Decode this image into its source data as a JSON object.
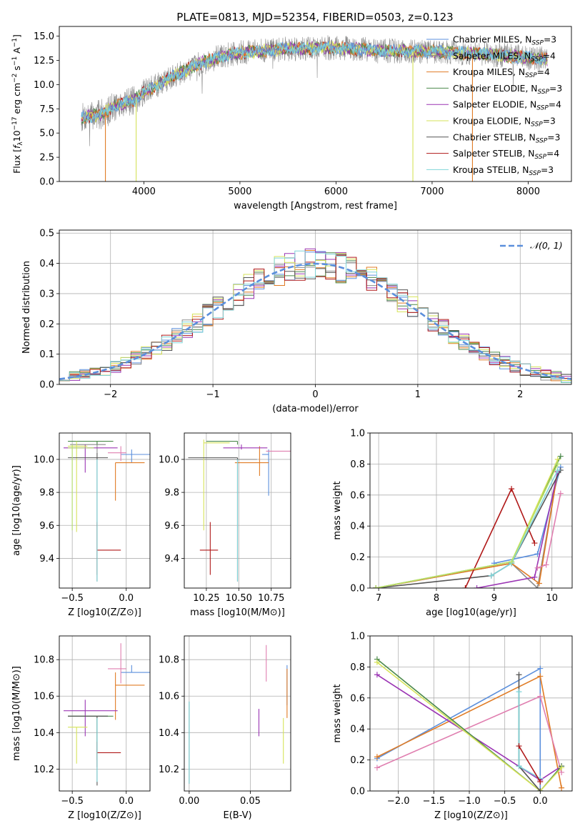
{
  "figure_title": "PLATE=0813, MJD=52354, FIBERID=0503, z=0.123",
  "colors": {
    "chabrier_miles": "#5b8fdc",
    "salpeter_miles": "#8c8c8c",
    "kroupa_miles": "#e07b24",
    "chabrier_elodie": "#4c8a4c",
    "salpeter_elodie": "#9b35b4",
    "kroupa_elodie": "#d6e35a",
    "chabrier_stelib": "#555555",
    "salpeter_stelib": "#b01818",
    "kroupa_stelib": "#7fd4d8",
    "extra_pink": "#e07fb0",
    "extra_lime": "#b6e06a",
    "gaussian": "#5b8fdc"
  },
  "chart_data": [
    {
      "id": "spectrum",
      "type": "line",
      "title": "PLATE=0813, MJD=52354, FIBERID=0503, z=0.123",
      "xlabel": "wavelength [Angstrom, rest frame]",
      "ylabel": "Flux [f_λ 10^-17 erg cm^-2 s^-1 A^-1]",
      "xlim": [
        3120,
        8450
      ],
      "ylim": [
        0,
        16
      ],
      "xticks": [
        "4000",
        "5000",
        "6000",
        "7000",
        "8000"
      ],
      "yticks": [
        "0.0",
        "2.5",
        "5.0",
        "7.5",
        "10.0",
        "12.5",
        "15.0"
      ],
      "grid": false,
      "legend_position": "upper right",
      "series": [
        {
          "name": "Chabrier MILES, N_SSP=3",
          "legend": "Chabrier MILES, NSSP=3"
        },
        {
          "name": "Salpeter MILES, N_SSP=4",
          "legend": "Salpeter MILES, NSSP=4"
        },
        {
          "name": "Kroupa MILES, N_SSP=4",
          "legend": "Kroupa MILES, NSSP=4"
        },
        {
          "name": "Chabrier ELODIE, N_SSP=3",
          "legend": "Chabrier ELODIE, NSSP=3"
        },
        {
          "name": "Salpeter ELODIE, N_SSP=4",
          "legend": "Salpeter ELODIE, NSSP=4"
        },
        {
          "name": "Kroupa ELODIE, N_SSP=3",
          "legend": "Kroupa ELODIE, NSSP=3"
        },
        {
          "name": "Chabrier STELIB, N_SSP=3",
          "legend": "Chabrier STELIB, NSSP=3"
        },
        {
          "name": "Salpeter STELIB, N_SSP=4",
          "legend": "Salpeter STELIB, NSSP=4"
        },
        {
          "name": "Kroupa STELIB, N_SSP=3",
          "legend": "Kroupa STELIB, NSSP=3"
        }
      ],
      "continuum_points": [
        [
          3350,
          6.6
        ],
        [
          3550,
          6.9
        ],
        [
          3700,
          7.8
        ],
        [
          3900,
          8.4
        ],
        [
          4000,
          9.2
        ],
        [
          4200,
          10.3
        ],
        [
          4400,
          11.3
        ],
        [
          4600,
          12.2
        ],
        [
          4800,
          12.9
        ],
        [
          5000,
          13.3
        ],
        [
          5500,
          13.7
        ],
        [
          6000,
          13.8
        ],
        [
          6500,
          13.5
        ],
        [
          7000,
          13.4
        ],
        [
          7500,
          13.2
        ],
        [
          8000,
          12.8
        ],
        [
          8200,
          12.6
        ]
      ],
      "noise_wavelength_range": [
        3350,
        8200
      ],
      "dropouts": [
        {
          "x": 3600,
          "series": "Kroupa MILES"
        },
        {
          "x": 3920,
          "series": "Kroupa ELODIE"
        },
        {
          "x": 6800,
          "series": "Kroupa ELODIE"
        },
        {
          "x": 7420,
          "series": "Kroupa MILES"
        }
      ]
    },
    {
      "id": "residuals",
      "type": "histogram",
      "xlabel": "(data-model)/error",
      "ylabel": "Normed distribution",
      "xlim": [
        -2.5,
        2.5
      ],
      "ylim": [
        0,
        0.51
      ],
      "xticks": [
        "−2",
        "−1",
        "0",
        "1",
        "2"
      ],
      "yticks": [
        "0.0",
        "0.1",
        "0.2",
        "0.3",
        "0.4",
        "0.5"
      ],
      "grid": true,
      "legend_position": "upper right",
      "gaussian_label": "𝒩(0, 1)",
      "bin_width": 0.1,
      "bin_range": [
        -2.5,
        2.5
      ]
    },
    {
      "id": "age_vs_Z",
      "type": "errorbar",
      "xlabel": "Z [log10(Z/Z⊙)]",
      "ylabel": "age  [log10(age/yr)]",
      "xlim": [
        -0.62,
        0.22
      ],
      "ylim": [
        9.22,
        10.16
      ],
      "xticks": [
        "−0.5",
        "0.0"
      ],
      "yticks": [
        "9.4",
        "9.6",
        "9.8",
        "10.0"
      ],
      "grid": true,
      "points": [
        {
          "c": "chabrier_miles",
          "x": 0.05,
          "xe": [
            0.1,
            0.17
          ],
          "y": 10.03,
          "ye": [
            0.05,
            0.03
          ]
        },
        {
          "c": "salpeter_miles",
          "x": -0.27,
          "xe": [
            0.25,
            0.08
          ],
          "y": 10.09,
          "ye": [
            0.05,
            0.02
          ]
        },
        {
          "c": "kroupa_miles",
          "x": -0.1,
          "xe": [
            0.0,
            0.27
          ],
          "y": 9.98,
          "ye": [
            0.23,
            0.0
          ]
        },
        {
          "c": "chabrier_elodie",
          "x": -0.27,
          "xe": [
            0.27,
            0.15
          ],
          "y": 10.11,
          "ye": [
            0.02,
            0.0
          ]
        },
        {
          "c": "salpeter_elodie",
          "x": -0.38,
          "xe": [
            0.2,
            0.3
          ],
          "y": 10.07,
          "ye": [
            0.15,
            0.02
          ]
        },
        {
          "c": "kroupa_elodie",
          "x": -0.46,
          "xe": [
            0.08,
            0.1
          ],
          "y": 10.08,
          "ye": [
            0.52,
            0.03
          ]
        },
        {
          "c": "chabrier_stelib",
          "x": -0.27,
          "xe": [
            0.27,
            0.1
          ],
          "y": 10.01,
          "ye": [
            0.75,
            0.03
          ]
        },
        {
          "c": "salpeter_stelib",
          "x": -0.27,
          "xe": [
            0.0,
            0.22
          ],
          "y": 9.45,
          "ye": [
            0.15,
            0.17
          ]
        },
        {
          "c": "kroupa_stelib",
          "x": -0.27,
          "xe": [
            0.0,
            0.0
          ],
          "y": 10.0,
          "ye": [
            0.74,
            0.0
          ]
        },
        {
          "c": "extra_pink",
          "x": -0.05,
          "xe": [
            0.12,
            0.05
          ],
          "y": 10.04,
          "ye": [
            0.05,
            0.04
          ]
        },
        {
          "c": "extra_lime",
          "x": -0.5,
          "xe": [
            0.04,
            0.2
          ],
          "y": 10.07,
          "ye": [
            0.5,
            0.02
          ]
        }
      ]
    },
    {
      "id": "age_vs_mass",
      "type": "errorbar",
      "xlabel": "mass [log10(M/M⊙)]",
      "ylabel": "",
      "xlim": [
        10.08,
        10.9
      ],
      "ylim": [
        9.22,
        10.16
      ],
      "xticks": [
        "10.25",
        "10.50",
        "10.75"
      ],
      "yticks": [
        "9.4",
        "9.6",
        "9.8",
        "10.0"
      ],
      "grid": true,
      "points": [
        {
          "c": "chabrier_miles",
          "x": 10.73,
          "xe": [
            0.05,
            0.0
          ],
          "y": 10.03,
          "ye": [
            0.25,
            0.03
          ]
        },
        {
          "c": "salpeter_miles",
          "x": 10.49,
          "xe": [
            0.4,
            0.15
          ],
          "y": 10.0,
          "ye": [
            0.0,
            0.0
          ]
        },
        {
          "c": "kroupa_miles",
          "x": 10.66,
          "xe": [
            0.19,
            0.07
          ],
          "y": 9.98,
          "ye": [
            0.08,
            0.1
          ]
        },
        {
          "c": "chabrier_elodie",
          "x": 10.49,
          "xe": [
            0.24,
            0.0
          ],
          "y": 10.11,
          "ye": [
            0.02,
            0.0
          ]
        },
        {
          "c": "salpeter_elodie",
          "x": 10.52,
          "xe": [
            0.14,
            0.2
          ],
          "y": 10.07,
          "ye": [
            0.01,
            0.02
          ]
        },
        {
          "c": "kroupa_elodie",
          "x": 10.23,
          "xe": [
            0.0,
            0.2
          ],
          "y": 10.1,
          "ye": [
            0.53,
            0.02
          ]
        },
        {
          "c": "chabrier_stelib",
          "x": 10.49,
          "xe": [
            0.38,
            0.0
          ],
          "y": 10.01,
          "ye": [
            0.75,
            0.0
          ]
        },
        {
          "c": "salpeter_stelib",
          "x": 10.28,
          "xe": [
            0.08,
            0.06
          ],
          "y": 9.45,
          "ye": [
            0.15,
            0.17
          ]
        },
        {
          "c": "kroupa_stelib",
          "x": 10.49,
          "xe": [
            0.0,
            0.0
          ],
          "y": 10.0,
          "ye": [
            0.74,
            0.0
          ]
        },
        {
          "c": "extra_pink",
          "x": 10.76,
          "xe": [
            0.05,
            0.14
          ],
          "y": 10.05,
          "ye": [
            0.0,
            0.0
          ]
        }
      ]
    },
    {
      "id": "weight_vs_age",
      "type": "line",
      "xlabel": "age  [log10(age/yr)]",
      "ylabel": "mass weight",
      "xlim": [
        6.85,
        10.35
      ],
      "ylim": [
        0,
        1
      ],
      "xticks": [
        "7",
        "8",
        "9",
        "10"
      ],
      "yticks": [
        "0.0",
        "0.2",
        "0.4",
        "0.6",
        "0.8",
        "1.0"
      ],
      "grid": true,
      "series": [
        {
          "c": "chabrier_miles",
          "x": [
            9.0,
            9.75,
            10.15
          ],
          "y": [
            0.16,
            0.22,
            0.78
          ]
        },
        {
          "c": "salpeter_miles",
          "x": [
            6.95,
            9.3,
            9.75,
            10.1
          ],
          "y": [
            0.0,
            0.16,
            0.0,
            0.75
          ]
        },
        {
          "c": "kroupa_miles",
          "x": [
            6.95,
            9.3,
            9.78,
            10.1
          ],
          "y": [
            0.0,
            0.16,
            0.03,
            0.75
          ]
        },
        {
          "c": "chabrier_elodie",
          "x": [
            6.95,
            9.3,
            10.15
          ],
          "y": [
            0.0,
            0.17,
            0.85
          ]
        },
        {
          "c": "salpeter_elodie",
          "x": [
            8.7,
            9.7,
            10.1
          ],
          "y": [
            0.0,
            0.07,
            0.75
          ]
        },
        {
          "c": "kroupa_elodie",
          "x": [
            6.95,
            9.3,
            10.1
          ],
          "y": [
            0.0,
            0.17,
            0.83
          ]
        },
        {
          "c": "chabrier_stelib",
          "x": [
            6.95,
            8.95,
            9.3,
            10.15
          ],
          "y": [
            0.0,
            0.08,
            0.16,
            0.76
          ]
        },
        {
          "c": "salpeter_stelib",
          "x": [
            8.5,
            9.3,
            9.7
          ],
          "y": [
            0.0,
            0.64,
            0.29
          ]
        },
        {
          "c": "kroupa_stelib",
          "x": [
            8.95,
            9.3,
            10.1
          ],
          "y": [
            0.08,
            0.16,
            0.76
          ]
        },
        {
          "c": "extra_pink",
          "x": [
            9.75,
            9.9,
            10.15
          ],
          "y": [
            0.13,
            0.15,
            0.61
          ]
        },
        {
          "c": "extra_lime",
          "x": [
            6.95,
            9.3,
            10.1
          ],
          "y": [
            0.0,
            0.17,
            0.8
          ]
        }
      ]
    },
    {
      "id": "mass_vs_Z",
      "type": "errorbar",
      "xlabel": "Z [log10(Z/Z⊙)]",
      "ylabel": "mass [log10(M/M⊙)]",
      "xlim": [
        -0.62,
        0.22
      ],
      "ylim": [
        10.08,
        10.93
      ],
      "xticks": [
        "−0.5",
        "0.0"
      ],
      "yticks": [
        "10.2",
        "10.4",
        "10.6",
        "10.8"
      ],
      "grid": true,
      "points": [
        {
          "c": "chabrier_miles",
          "x": 0.05,
          "xe": [
            0.1,
            0.17
          ],
          "y": 10.73,
          "ye": [
            0.0,
            0.04
          ]
        },
        {
          "c": "salpeter_miles",
          "x": -0.27,
          "xe": [
            0.27,
            0.1
          ],
          "y": 10.49,
          "ye": [
            0.2,
            0.0
          ]
        },
        {
          "c": "kroupa_miles",
          "x": -0.1,
          "xe": [
            0.0,
            0.27
          ],
          "y": 10.66,
          "ye": [
            0.19,
            0.07
          ]
        },
        {
          "c": "chabrier_elodie",
          "x": -0.27,
          "xe": [
            0.27,
            0.15
          ],
          "y": 10.49,
          "ye": [
            0.24,
            0.0
          ]
        },
        {
          "c": "salpeter_elodie",
          "x": -0.38,
          "xe": [
            0.2,
            0.3
          ],
          "y": 10.52,
          "ye": [
            0.14,
            0.06
          ]
        },
        {
          "c": "kroupa_elodie",
          "x": -0.46,
          "xe": [
            0.08,
            0.1
          ],
          "y": 10.43,
          "ye": [
            0.2,
            0.0
          ]
        },
        {
          "c": "chabrier_stelib",
          "x": -0.27,
          "xe": [
            0.27,
            0.1
          ],
          "y": 10.49,
          "ye": [
            0.38,
            0.0
          ]
        },
        {
          "c": "salpeter_stelib",
          "x": -0.27,
          "xe": [
            0.0,
            0.22
          ],
          "y": 10.29,
          "ye": [
            0.08,
            0.06
          ]
        },
        {
          "c": "kroupa_stelib",
          "x": -0.27,
          "xe": [
            0.0,
            0.0
          ],
          "y": 10.48,
          "ye": [
            0.35,
            0.0
          ]
        },
        {
          "c": "extra_pink",
          "x": -0.05,
          "xe": [
            0.12,
            0.05
          ],
          "y": 10.75,
          "ye": [
            0.08,
            0.14
          ]
        }
      ]
    },
    {
      "id": "mass_vs_ebv",
      "type": "errorbar",
      "xlabel": "E(B-V)",
      "ylabel": "",
      "xlim": [
        -0.004,
        0.083
      ],
      "ylim": [
        10.08,
        10.93
      ],
      "xticks": [
        "0.00",
        "0.05"
      ],
      "yticks": [
        "10.2",
        "10.4",
        "10.6",
        "10.8"
      ],
      "grid": true,
      "points": [
        {
          "c": "chabrier_miles",
          "x": 0.08,
          "xe": [
            0,
            0
          ],
          "y": 10.6,
          "ye": [
            0.05,
            0.17
          ]
        },
        {
          "c": "salpeter_miles",
          "x": 0.0,
          "xe": [
            0,
            0
          ],
          "y": 10.4,
          "ye": [
            0.28,
            0.17
          ]
        },
        {
          "c": "kroupa_miles",
          "x": 0.08,
          "xe": [
            0,
            0
          ],
          "y": 10.55,
          "ye": [
            0.07,
            0.2
          ]
        },
        {
          "c": "salpeter_elodie",
          "x": 0.057,
          "xe": [
            0,
            0
          ],
          "y": 10.45,
          "ye": [
            0.07,
            0.08
          ]
        },
        {
          "c": "kroupa_elodie",
          "x": 0.077,
          "xe": [
            0,
            0
          ],
          "y": 10.4,
          "ye": [
            0.17,
            0.08
          ]
        },
        {
          "c": "extra_pink",
          "x": 0.063,
          "xe": [
            0,
            0
          ],
          "y": 10.78,
          "ye": [
            0.1,
            0.1
          ]
        },
        {
          "c": "kroupa_stelib",
          "x": 0.0,
          "xe": [
            0,
            0
          ],
          "y": 10.4,
          "ye": [
            0.28,
            0.17
          ]
        }
      ]
    },
    {
      "id": "weight_vs_Z",
      "type": "line",
      "xlabel": "Z [log10(Z/Z⊙)]",
      "ylabel": "mass weight",
      "xlim": [
        -2.4,
        0.45
      ],
      "ylim": [
        0,
        1
      ],
      "xticks": [
        "−2.0",
        "−1.5",
        "−1.0",
        "−0.5",
        "0.0"
      ],
      "yticks": [
        "0.0",
        "0.2",
        "0.4",
        "0.6",
        "0.8",
        "1.0"
      ],
      "grid": true,
      "series": [
        {
          "c": "chabrier_miles",
          "x": [
            -2.3,
            0.0,
            0.0
          ],
          "y": [
            0.21,
            0.79,
            0.0
          ]
        },
        {
          "c": "kroupa_miles",
          "x": [
            -2.3,
            0.0,
            0.3
          ],
          "y": [
            0.22,
            0.74,
            0.02
          ]
        },
        {
          "c": "extra_pink",
          "x": [
            -2.3,
            0.0,
            0.3
          ],
          "y": [
            0.15,
            0.61,
            0.12
          ]
        },
        {
          "c": "salpeter_elodie",
          "x": [
            -2.3,
            0.0,
            0.3
          ],
          "y": [
            0.75,
            0.07,
            0.16
          ]
        },
        {
          "c": "chabrier_elodie",
          "x": [
            -2.3,
            0.0,
            0.3
          ],
          "y": [
            0.85,
            0.0,
            0.16
          ]
        },
        {
          "c": "kroupa_elodie",
          "x": [
            -2.3,
            0.0,
            0.3
          ],
          "y": [
            0.83,
            0.0,
            0.15
          ]
        },
        {
          "c": "chabrier_stelib",
          "x": [
            -0.3,
            -0.3,
            0.0
          ],
          "y": [
            0.75,
            0.16,
            0.0
          ]
        },
        {
          "c": "kroupa_stelib",
          "x": [
            -0.3,
            -0.3,
            0.0
          ],
          "y": [
            0.64,
            0.16,
            0.08
          ]
        },
        {
          "c": "salpeter_stelib",
          "x": [
            -0.3,
            0.0
          ],
          "y": [
            0.29,
            0.06
          ]
        }
      ]
    }
  ]
}
